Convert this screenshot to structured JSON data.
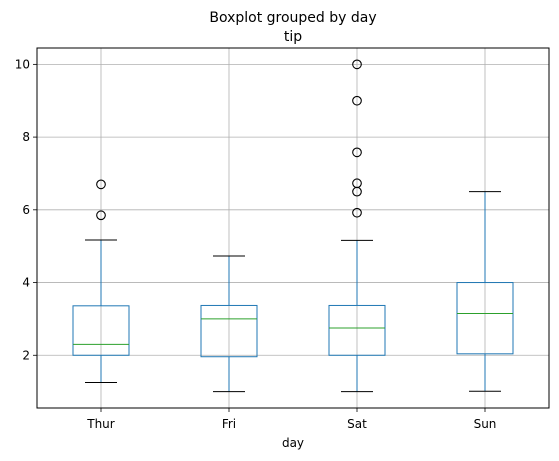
{
  "chart_data": {
    "type": "boxplot",
    "title": "Boxplot grouped by day",
    "subtitle": "tip",
    "xlabel": "day",
    "ylabel": "",
    "ylim": [
      0.55,
      10.45
    ],
    "yticks": [
      2,
      4,
      6,
      8,
      10
    ],
    "grid": true,
    "categories": [
      "Thur",
      "Fri",
      "Sat",
      "Sun"
    ],
    "boxes": [
      {
        "category": "Thur",
        "whisker_low": 1.25,
        "q1": 2.0,
        "median": 2.3,
        "q3": 3.36,
        "whisker_high": 5.17,
        "outliers": [
          5.85,
          6.7
        ]
      },
      {
        "category": "Fri",
        "whisker_low": 1.0,
        "q1": 1.96,
        "median": 3.0,
        "q3": 3.37,
        "whisker_high": 4.73,
        "outliers": []
      },
      {
        "category": "Sat",
        "whisker_low": 1.0,
        "q1": 2.0,
        "median": 2.75,
        "q3": 3.37,
        "whisker_high": 5.16,
        "outliers": [
          5.92,
          6.5,
          6.73,
          7.58,
          9.0,
          10.0
        ]
      },
      {
        "category": "Sun",
        "whisker_low": 1.01,
        "q1": 2.04,
        "median": 3.15,
        "q3": 4.0,
        "whisker_high": 6.5,
        "outliers": []
      }
    ],
    "colors": {
      "box": "#1f77b4",
      "median": "#2ca02c",
      "grid": "#b0b0b0",
      "axis": "#000000"
    }
  }
}
